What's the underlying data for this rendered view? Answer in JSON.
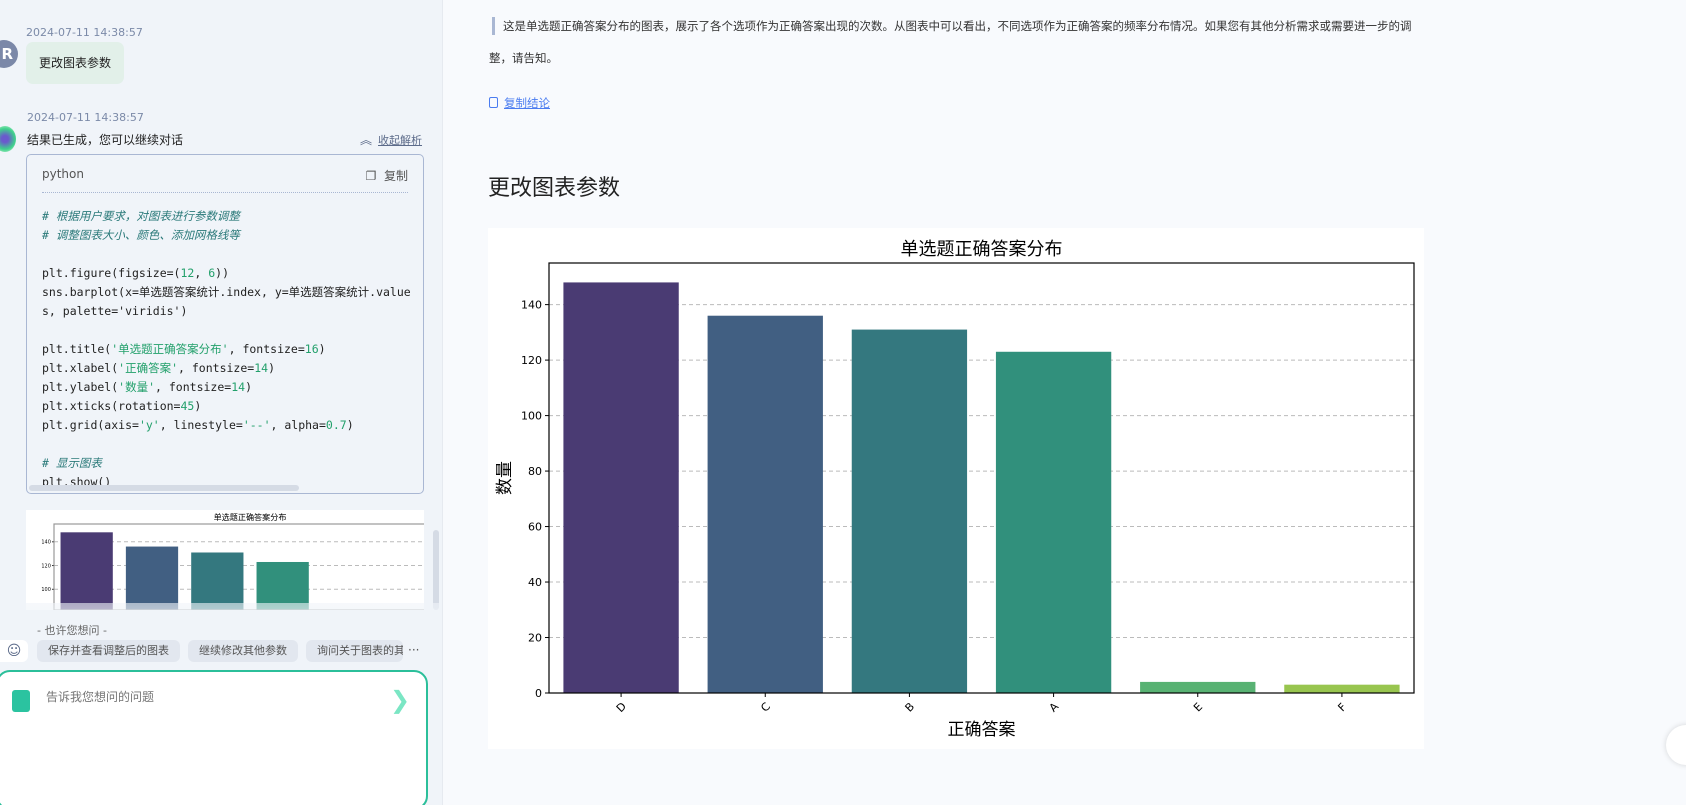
{
  "chat": {
    "user_message": {
      "timestamp": "2024-07-11 14:38:57",
      "avatar_letter": "R",
      "text": "更改图表参数"
    },
    "bot_message": {
      "timestamp": "2024-07-11 14:38:57",
      "status": "结果已生成，您可以继续对话",
      "collapse_label": "收起解析",
      "code_block": {
        "language": "python",
        "copy_label": "复制",
        "lines": [
          [
            [
              "# 根据用户要求，对图表进行参数调整",
              "cm"
            ]
          ],
          [
            [
              "# 调整图表大小、颜色、添加网格线等",
              "cm"
            ]
          ],
          [],
          [
            [
              "plt.figure(figsize=(",
              ""
            ],
            [
              "12",
              "num"
            ],
            [
              ", ",
              ""
            ],
            [
              "6",
              "num"
            ],
            [
              "))",
              ""
            ]
          ],
          [
            [
              "sns.barplot(x=单选题答案统计.index, y=单选题答案统计.values, palette='viridis')",
              ""
            ]
          ],
          [],
          [
            [
              "plt.title(",
              ""
            ],
            [
              "'单选题正确答案分布'",
              "str"
            ],
            [
              ", fontsize=",
              ""
            ],
            [
              "16",
              "num"
            ],
            [
              ")",
              ""
            ]
          ],
          [
            [
              "plt.xlabel(",
              ""
            ],
            [
              "'正确答案'",
              "str"
            ],
            [
              ", fontsize=",
              ""
            ],
            [
              "14",
              "num"
            ],
            [
              ")",
              ""
            ]
          ],
          [
            [
              "plt.ylabel(",
              ""
            ],
            [
              "'数量'",
              "str"
            ],
            [
              ", fontsize=",
              ""
            ],
            [
              "14",
              "num"
            ],
            [
              ")",
              ""
            ]
          ],
          [
            [
              "plt.xticks(rotation=",
              ""
            ],
            [
              "45",
              "num"
            ],
            [
              ")",
              ""
            ]
          ],
          [
            [
              "plt.grid(axis=",
              ""
            ],
            [
              "'y'",
              "str"
            ],
            [
              ", linestyle=",
              ""
            ],
            [
              "'--'",
              "str"
            ],
            [
              ", alpha=",
              ""
            ],
            [
              "0.7",
              "num"
            ],
            [
              ")",
              ""
            ]
          ],
          [],
          [
            [
              "# 显示图表",
              "cm"
            ]
          ],
          [
            [
              "plt.show()",
              ""
            ]
          ]
        ]
      }
    },
    "suggestions": {
      "title": "- 也许您想问 -",
      "items": [
        "保存并查看调整后的图表",
        "继续修改其他参数",
        "询问关于图表的其他问题"
      ]
    },
    "input": {
      "placeholder": "告诉我您想问的问题"
    }
  },
  "main": {
    "conclusion_line1": "这是单选题正确答案分布的图表，展示了各个选项作为正确答案出现的次数。从图表中可以看出，不同选项作为正确答案的频率分布情况。如果您有其他分析需求或需要进一步的调",
    "conclusion_line2": "整，请告知。",
    "copy_conclusion": "复制结论",
    "section_title": "更改图表参数"
  },
  "chart_data": {
    "type": "bar",
    "title": "单选题正确答案分布",
    "xlabel": "正确答案",
    "ylabel": "数量",
    "categories": [
      "D",
      "C",
      "B",
      "A",
      "E",
      "F"
    ],
    "values": [
      148,
      136,
      131,
      123,
      4,
      3
    ],
    "colors": [
      "#4a3b73",
      "#415f82",
      "#34787f",
      "#31907c",
      "#58b273",
      "#98c54f"
    ],
    "ylim": [
      0,
      155
    ],
    "yticks": [
      0,
      20,
      40,
      60,
      80,
      100,
      120,
      140
    ],
    "xtick_rotation": 45,
    "grid": "y dashed"
  }
}
